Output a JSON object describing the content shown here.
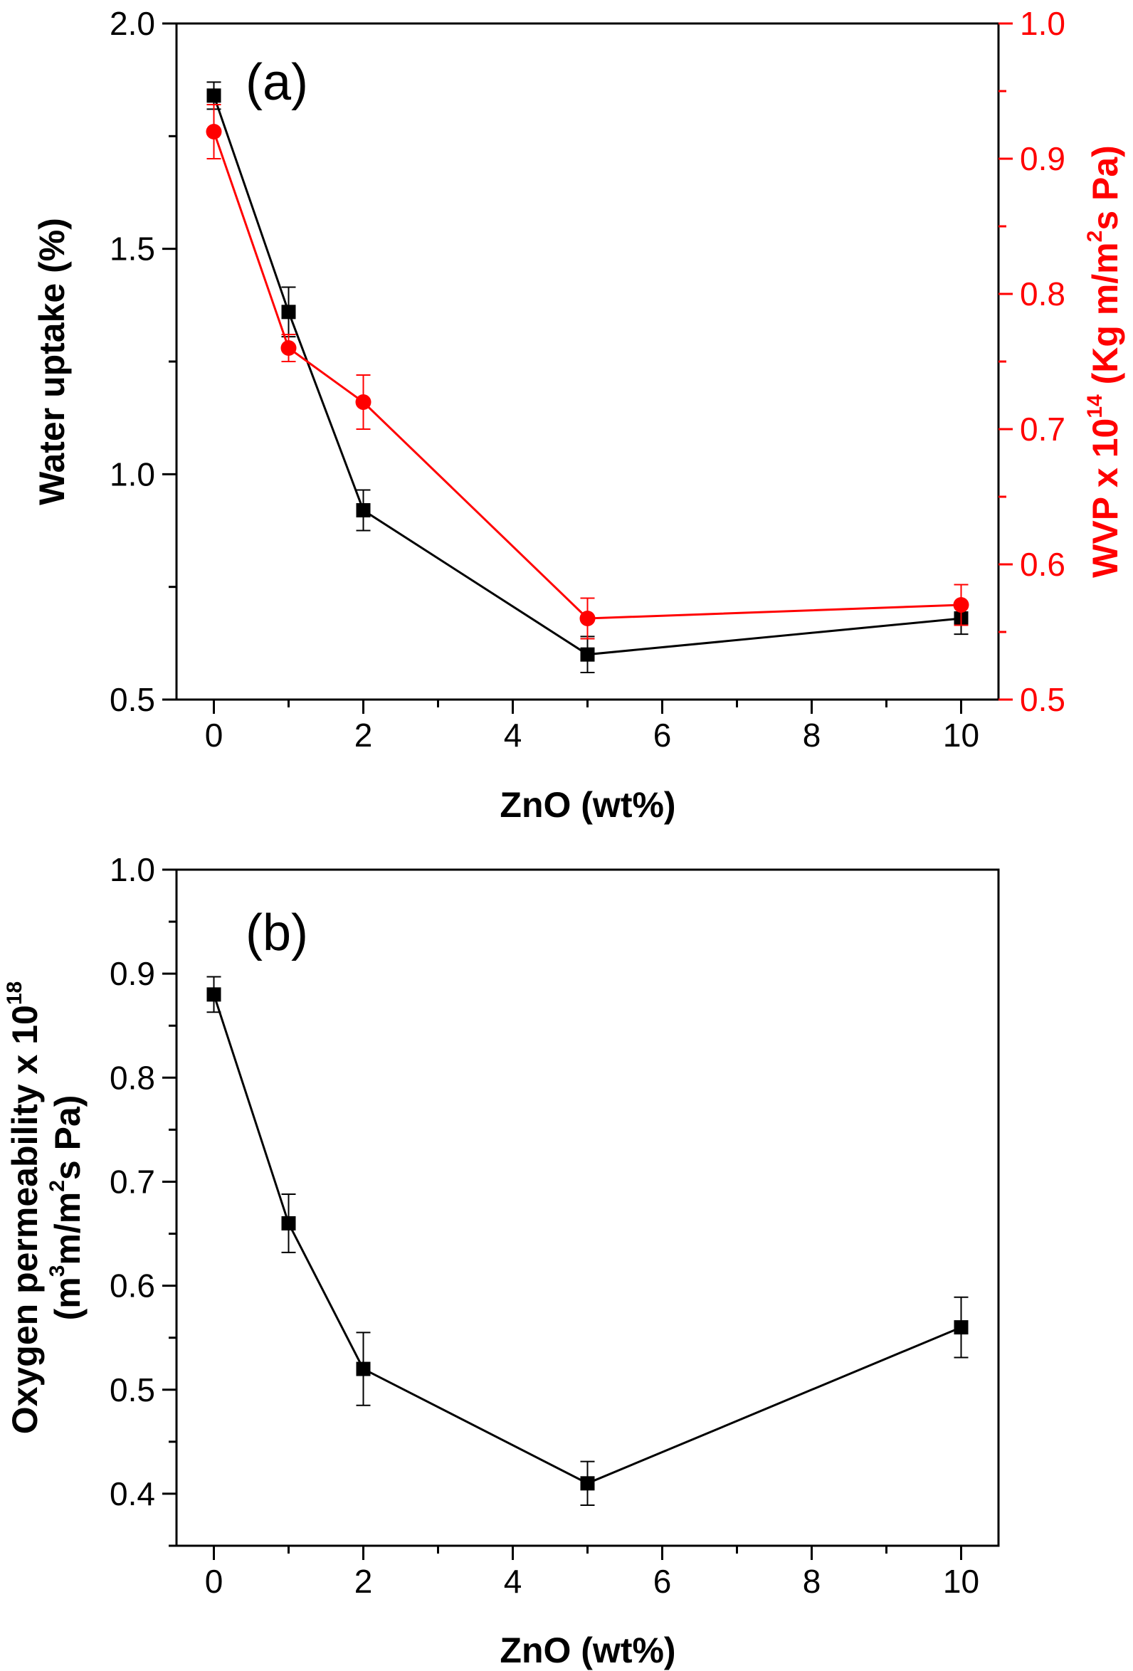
{
  "chart_data": [
    {
      "type": "line",
      "panel_label": "(a)",
      "xlabel": "ZnO (wt%)",
      "ylabel": "Water uptake (%)",
      "y2label": "WVP x 10^14 (Kg m/m^2 s Pa)",
      "y2label_parts": {
        "pre": "WVP x 10",
        "exp1": "14",
        "mid": " (Kg m/m",
        "exp2": "2",
        "post": "s Pa)"
      },
      "xlim": [
        -0.5,
        10.5
      ],
      "xticks": [
        0,
        2,
        4,
        6,
        8,
        10
      ],
      "xtick_labels": [
        "0",
        "2",
        "4",
        "6",
        "8",
        "10"
      ],
      "ylim": [
        0.5,
        2.0
      ],
      "yticks": [
        0.5,
        1.0,
        1.5,
        2.0
      ],
      "ytick_labels": [
        "0.5",
        "1.0",
        "1.5",
        "2.0"
      ],
      "y2lim": [
        0.5,
        1.0
      ],
      "y2ticks": [
        0.5,
        0.6,
        0.7,
        0.8,
        0.9,
        1.0
      ],
      "y2tick_labels": [
        "0.5",
        "0.6",
        "0.7",
        "0.8",
        "0.9",
        "1.0"
      ],
      "series": [
        {
          "name": "Water uptake",
          "axis": "left",
          "color": "#000000",
          "marker": "square",
          "x": [
            0,
            1,
            2,
            5,
            10
          ],
          "y": [
            1.84,
            1.36,
            0.92,
            0.6,
            0.68
          ],
          "err": [
            0.03,
            0.055,
            0.045,
            0.04,
            0.035
          ]
        },
        {
          "name": "WVP",
          "axis": "right",
          "color": "#ff0000",
          "marker": "circle",
          "x": [
            0,
            1,
            2,
            5,
            10
          ],
          "y": [
            0.92,
            0.76,
            0.72,
            0.56,
            0.57
          ],
          "err": [
            0.02,
            0.01,
            0.02,
            0.015,
            0.015
          ]
        }
      ]
    },
    {
      "type": "line",
      "panel_label": "(b)",
      "xlabel": "ZnO (wt%)",
      "ylabel": "Oxygen permeability x 10^18 (m^3 m/m^2 s Pa)",
      "ylabel_line1_parts": {
        "pre": "Oxygen permeability x 10",
        "exp": "18"
      },
      "ylabel_line2_parts": {
        "pre": "(m",
        "exp1": "3",
        "mid": "m/m",
        "exp2": "2",
        "post": "s Pa)"
      },
      "xlim": [
        -0.5,
        10.5
      ],
      "xticks": [
        0,
        2,
        4,
        6,
        8,
        10
      ],
      "xtick_labels": [
        "0",
        "2",
        "4",
        "6",
        "8",
        "10"
      ],
      "ylim": [
        0.35,
        1.0
      ],
      "yticks": [
        0.4,
        0.5,
        0.6,
        0.7,
        0.8,
        0.9,
        1.0
      ],
      "ytick_labels": [
        "0.4",
        "0.5",
        "0.6",
        "0.7",
        "0.8",
        "0.9",
        "1.0"
      ],
      "series": [
        {
          "name": "Oxygen permeability",
          "axis": "left",
          "color": "#000000",
          "marker": "square",
          "x": [
            0,
            1,
            2,
            5,
            10
          ],
          "y": [
            0.88,
            0.66,
            0.52,
            0.41,
            0.56
          ],
          "err": [
            0.017,
            0.028,
            0.035,
            0.021,
            0.029
          ]
        }
      ]
    }
  ]
}
